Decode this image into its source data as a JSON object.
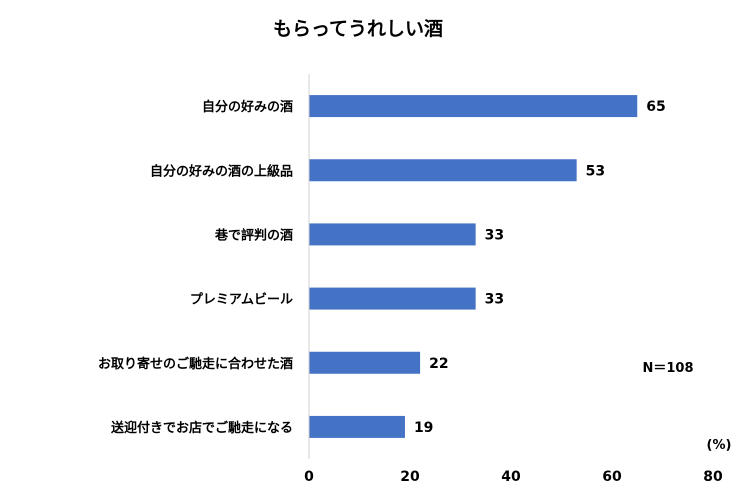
{
  "chart_data": {
    "type": "bar",
    "orientation": "horizontal",
    "title": "もらってうれしい酒",
    "categories": [
      "自分の好みの酒",
      "自分の好みの酒の上級品",
      "巷で評判の酒",
      "プレミアムビール",
      "お取り寄せのご馳走に合わせた酒",
      "送迎付きでお店でご馳走になる"
    ],
    "values": [
      65,
      53,
      33,
      33,
      22,
      19
    ],
    "xlim": [
      0,
      80
    ],
    "xticks": [
      0,
      20,
      40,
      60,
      80
    ],
    "unit_label": "(%)",
    "annotation": "N＝108",
    "bar_color": "#4472c4",
    "grid": false
  }
}
